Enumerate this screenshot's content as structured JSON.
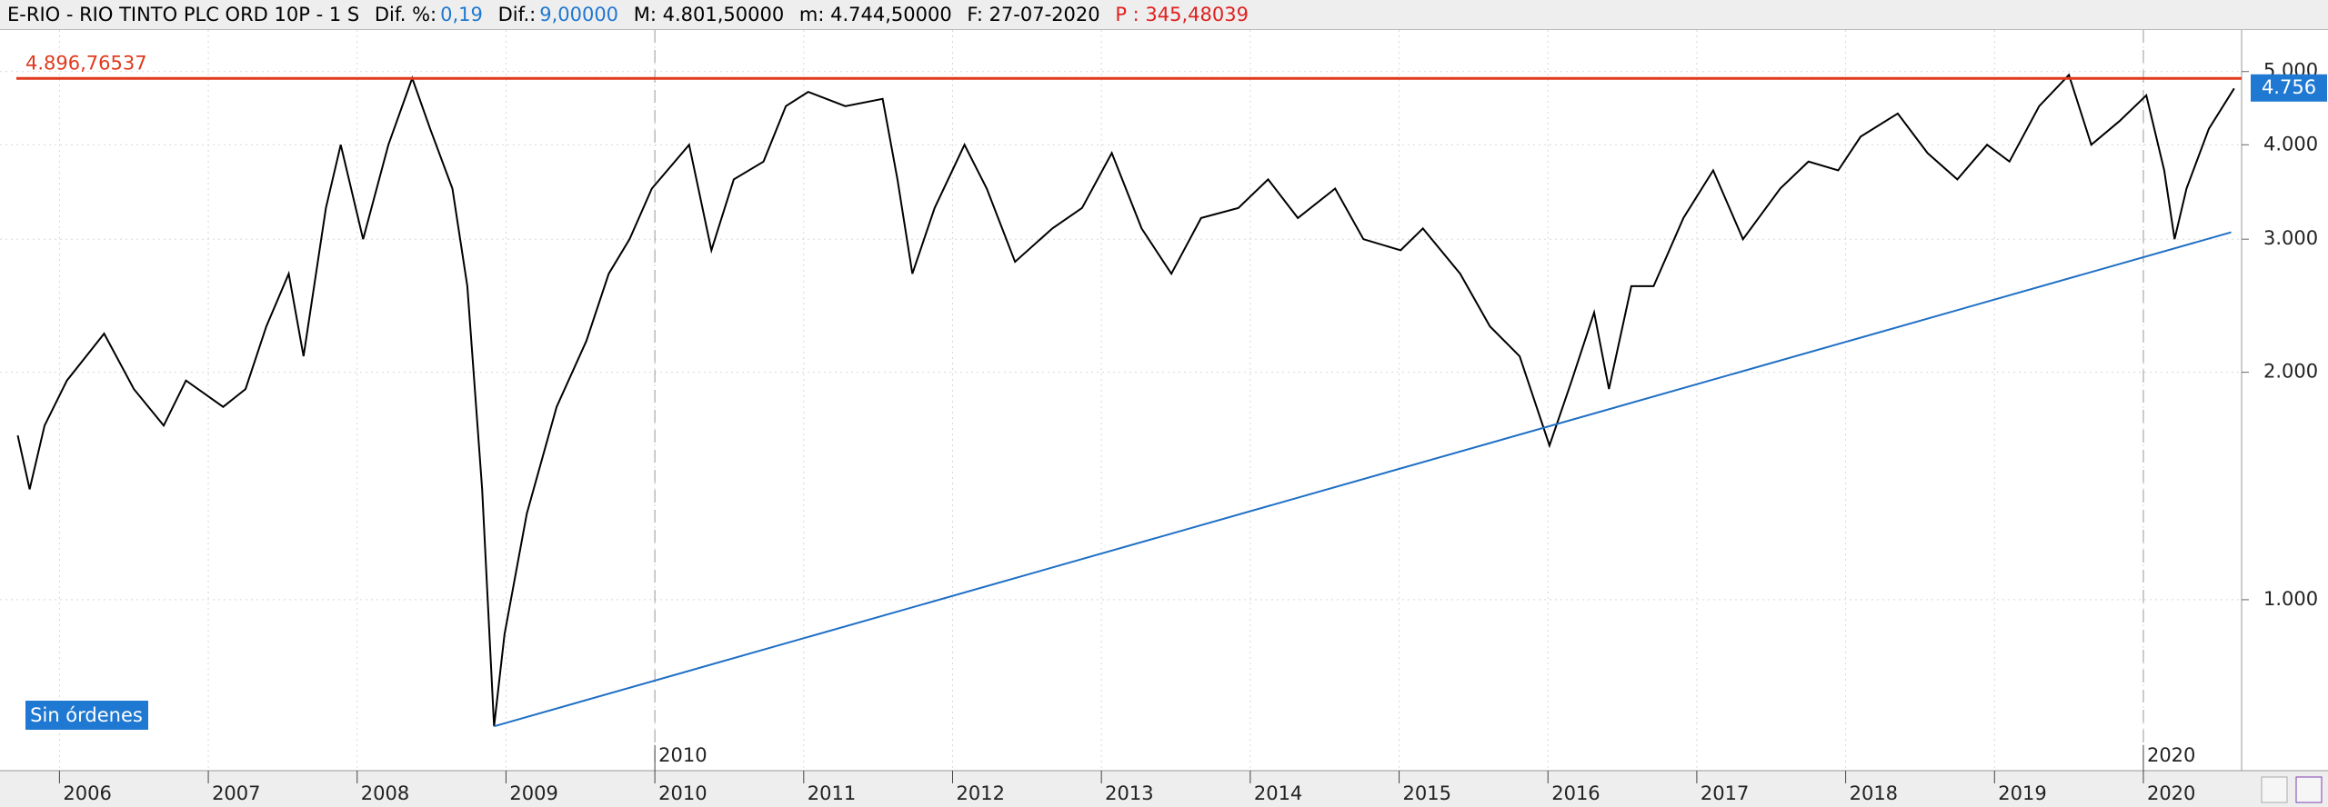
{
  "header": {
    "symbol": "E-RIO - RIO TINTO PLC ORD 10P -  1 S",
    "dif_pct_label": "Dif. %:",
    "dif_pct": "0,19",
    "dif_label": "Dif.:",
    "dif": "9,00000",
    "max": "M: 4.801,50000",
    "min": "m: 4.744,50000",
    "date": "F: 27-07-2020",
    "per": "P : 345,48039"
  },
  "button": "Sin órdenes",
  "chart_data": {
    "type": "line",
    "color": "#000000",
    "log_scale": true,
    "grid": true,
    "x": [
      2005.72,
      2005.8,
      2005.9,
      2006.05,
      2006.3,
      2006.5,
      2006.7,
      2006.85,
      2007.1,
      2007.25,
      2007.39,
      2007.54,
      2007.64,
      2007.79,
      2007.89,
      2008.04,
      2008.21,
      2008.37,
      2008.49,
      2008.64,
      2008.74,
      2008.84,
      2008.92,
      2008.99,
      2009.14,
      2009.34,
      2009.54,
      2009.69,
      2009.83,
      2009.98,
      2010.23,
      2010.38,
      2010.53,
      2010.73,
      2010.88,
      2011.03,
      2011.28,
      2011.53,
      2011.63,
      2011.73,
      2011.88,
      2012.08,
      2012.23,
      2012.42,
      2012.67,
      2012.87,
      2013.07,
      2013.27,
      2013.47,
      2013.67,
      2013.92,
      2014.12,
      2014.32,
      2014.57,
      2014.76,
      2015.01,
      2015.16,
      2015.41,
      2015.61,
      2015.81,
      2016.01,
      2016.16,
      2016.31,
      2016.41,
      2016.56,
      2016.71,
      2016.91,
      2017.11,
      2017.31,
      2017.56,
      2017.75,
      2017.95,
      2018.1,
      2018.35,
      2018.55,
      2018.75,
      2018.95,
      2019.1,
      2019.3,
      2019.5,
      2019.65,
      2019.84,
      2020.02,
      2020.14,
      2020.21,
      2020.29,
      2020.44,
      2020.61
    ],
    "values": [
      1650,
      1400,
      1700,
      1950,
      2250,
      1900,
      1700,
      1950,
      1800,
      1900,
      2300,
      2700,
      2100,
      3300,
      4000,
      3000,
      4000,
      4900,
      4200,
      3500,
      2600,
      1400,
      680,
      900,
      1300,
      1800,
      2200,
      2700,
      3000,
      3500,
      4000,
      2900,
      3600,
      3800,
      4500,
      4700,
      4500,
      4600,
      3600,
      2700,
      3300,
      4000,
      3500,
      2800,
      3100,
      3300,
      3900,
      3100,
      2700,
      3200,
      3300,
      3600,
      3200,
      3500,
      3000,
      2900,
      3100,
      2700,
      2300,
      2100,
      1600,
      1950,
      2400,
      1900,
      2600,
      2600,
      3200,
      3700,
      3000,
      3500,
      3800,
      3700,
      4100,
      4400,
      3900,
      3600,
      4000,
      3800,
      4500,
      4950,
      4000,
      4300,
      4650,
      3700,
      3000,
      3500,
      4200,
      4750
    ],
    "xlim": [
      2005.68,
      2020.66
    ],
    "xticks": [
      2006,
      2007,
      2008,
      2009,
      2010,
      2011,
      2012,
      2013,
      2014,
      2015,
      2016,
      2017,
      2018,
      2019,
      2020
    ],
    "decade_markers": [
      2010,
      2020
    ],
    "ylim": [
      594,
      5675
    ],
    "yticks": [
      {
        "value": 1000,
        "label": "1.000"
      },
      {
        "value": 2000,
        "label": "2.000"
      },
      {
        "value": 3000,
        "label": "3.000"
      },
      {
        "value": 4000,
        "label": "4.000"
      },
      {
        "value": 5000,
        "label": "5.000"
      }
    ],
    "hline": {
      "value": 4896.76537,
      "label": "4.896,76537",
      "color": "#e03a1e"
    },
    "trendline": {
      "x": [
        2008.92,
        2020.59
      ],
      "values": [
        680,
        3064
      ],
      "color": "#1f6fc5"
    },
    "last_price": {
      "value": 4756,
      "label": "4.756",
      "color": "#1f78d1"
    }
  }
}
